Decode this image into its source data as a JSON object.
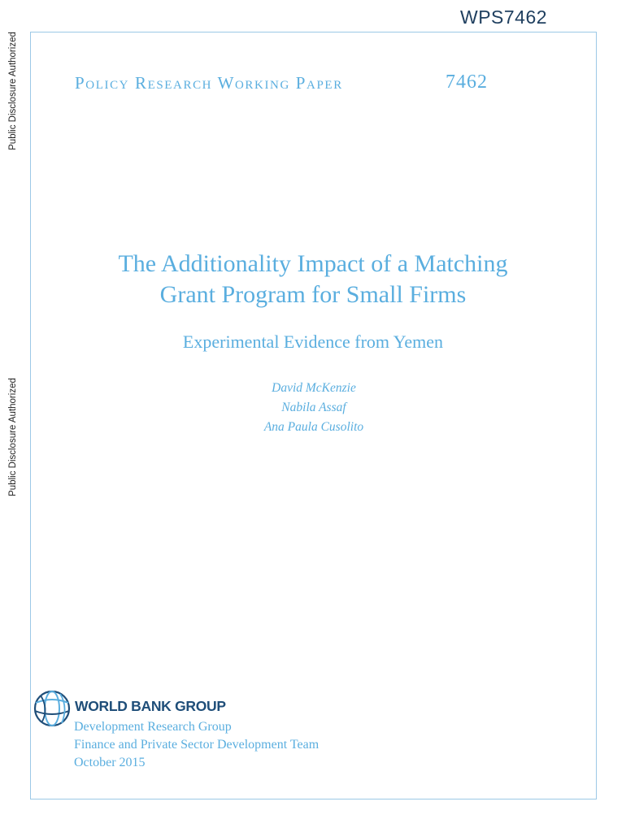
{
  "report_id": "WPS7462",
  "side_label_top": "Public Disclosure Authorized",
  "side_label_bottom": "Public Disclosure Authorized",
  "series": "Policy Research Working Paper",
  "paper_number": "7462",
  "title_line1": "The Additionality Impact of a Matching",
  "title_line2": "Grant Program for Small Firms",
  "subtitle": "Experimental Evidence from Yemen",
  "authors": [
    "David McKenzie",
    "Nabila Assaf",
    "Ana Paula Cusolito"
  ],
  "logo_text": "WORLD BANK GROUP",
  "footer": [
    "Development Research Group",
    "Finance and Private Sector Development Team",
    "October 2015"
  ],
  "colors": {
    "accent": "#5aaedf",
    "logo": "#1f4e79",
    "frame": "#9cc8e6"
  },
  "icons": {
    "logo": "world-bank-globe-icon"
  }
}
